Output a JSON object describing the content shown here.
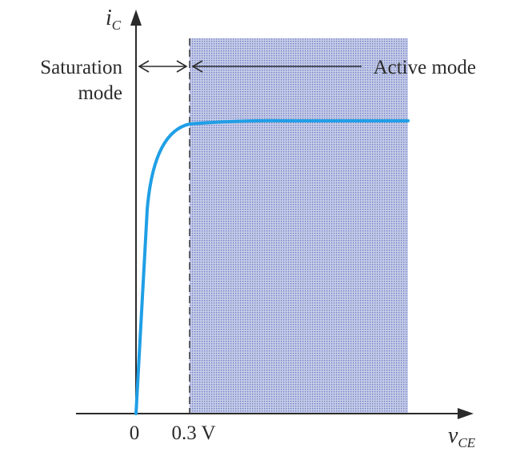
{
  "diagram": {
    "y_axis_label": {
      "main": "i",
      "sub": "C"
    },
    "x_axis_label": {
      "main": "v",
      "sub": "CE"
    },
    "tick_labels": {
      "origin": "0",
      "threshold": "0.3 V"
    },
    "region_labels": {
      "saturation_line1": "Saturation",
      "saturation_line2": "mode",
      "active": "Active mode"
    },
    "colors": {
      "curve": "#1f9fe6",
      "active_region_fill": "#c7cde8",
      "active_region_dots": "#6f7fc4",
      "axes": "#2b2b2b"
    }
  }
}
